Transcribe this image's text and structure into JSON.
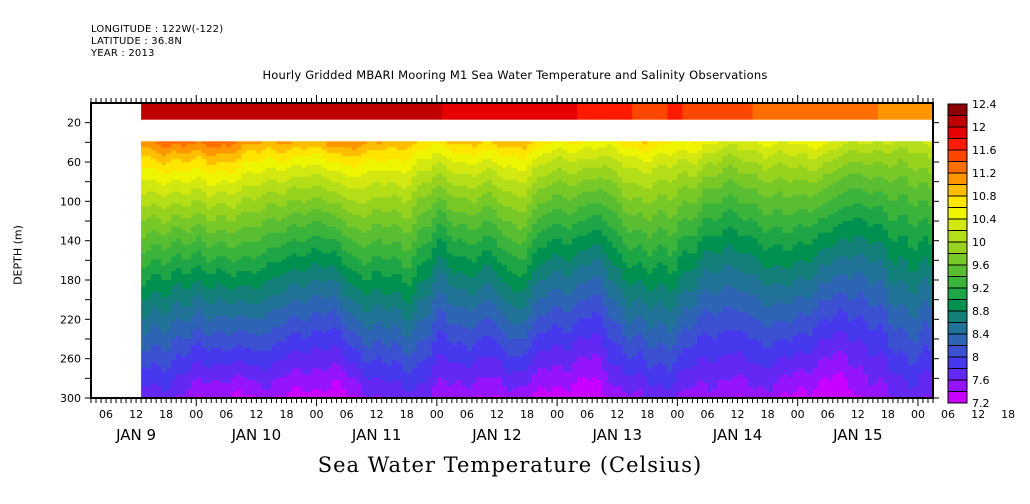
{
  "header": {
    "longitude": "LONGITUDE : 122W(-122)",
    "latitude": "LATITUDE : 36.8N",
    "year": "YEAR : 2013"
  },
  "chart_data": {
    "type": "heatmap",
    "title": "Hourly Gridded MBARI Mooring M1 Sea Water Temperature and Salinity Observations",
    "xlabel": "Sea Water Temperature (Celsius)",
    "ylabel": "DEPTH (m)",
    "x_range_hours": [
      0,
      168
    ],
    "x_start": "JAN 9 00:00 (approx, plot starts ~JAN 9 03)",
    "data_start_hour": 10,
    "y_range": [
      0,
      300
    ],
    "y_inverted": true,
    "y_ticks": [
      20,
      60,
      100,
      140,
      180,
      220,
      260,
      300
    ],
    "y_minor_ticks": [
      40,
      80,
      120,
      160,
      200,
      240,
      280
    ],
    "x_hour_labels": [
      "06",
      "12",
      "18",
      "00",
      "06",
      "12",
      "18",
      "00",
      "06",
      "12",
      "18",
      "00",
      "06",
      "12",
      "18",
      "00",
      "06",
      "12",
      "18",
      "00",
      "06",
      "12",
      "18",
      "00",
      "06",
      "12",
      "18",
      "00",
      "06",
      "12",
      "18"
    ],
    "x_day_labels": [
      "JAN 9",
      "JAN 10",
      "JAN 11",
      "JAN 12",
      "JAN 13",
      "JAN 14",
      "JAN 15"
    ],
    "missing_depth_band": [
      17,
      37
    ],
    "colorbar": {
      "min": 7.2,
      "max": 12.4,
      "step": 0.2,
      "labels": [
        "12.4",
        "12",
        "11.6",
        "11.2",
        "10.8",
        "10.4",
        "10",
        "9.6",
        "9.2",
        "8.8",
        "8.4",
        "8",
        "7.6",
        "7.2"
      ],
      "colors": [
        "#8b0000",
        "#c00000",
        "#e60000",
        "#ff1a00",
        "#ff4600",
        "#ff6e00",
        "#ff9600",
        "#ffbe00",
        "#ffe600",
        "#eef500",
        "#d2e810",
        "#b4de18",
        "#96d21e",
        "#78c828",
        "#5abe32",
        "#3cb43c",
        "#1ea546",
        "#009150",
        "#128078",
        "#207396",
        "#2d64b4",
        "#3c50d2",
        "#4638ec",
        "#6428f5",
        "#9614fa",
        "#c800ff"
      ]
    },
    "profile_description": "Temperature decreases with depth: surface layer ~11.8-12.2C (Jan 9-11) cooling to ~11.0C by Jan 15; at 40 m ~11.4C early, ~10.4C late; ~9.6C near 100-140 m; ~8.8C near 180 m; ~8.0C near 240-260 m; ~7.4-7.6C at 300 m with wavy internal-wave structure."
  }
}
